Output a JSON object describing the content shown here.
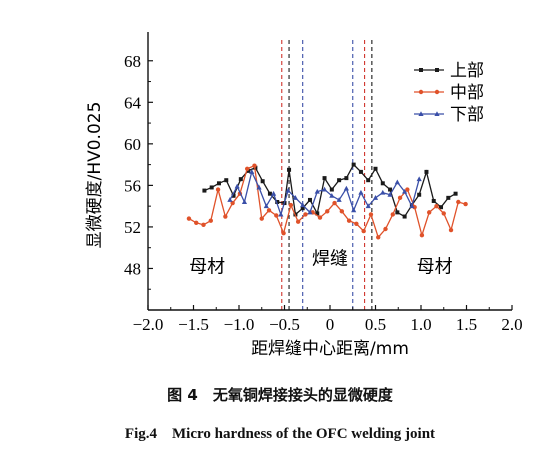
{
  "chart_data": {
    "type": "line",
    "xlabel": "距焊缝中心距离/mm",
    "ylabel": "显微硬度/HV0.025",
    "xlim": [
      -2.0,
      2.0
    ],
    "ylim": [
      44,
      70
    ],
    "x_ticks": [
      -2.0,
      -1.5,
      -1.0,
      -0.5,
      0,
      0.5,
      1.0,
      1.5,
      2.0
    ],
    "x_tick_labels": [
      "−2.0",
      "−1.5",
      "−1.0",
      "−0.5",
      "0",
      "0.5",
      "1.0",
      "1.5",
      "2.0"
    ],
    "y_ticks": [
      48,
      52,
      56,
      60,
      64,
      68
    ],
    "y_tick_labels": [
      "48",
      "52",
      "56",
      "60",
      "64",
      "68"
    ],
    "legend_position": "top-right",
    "series": [
      {
        "name": "上部",
        "color": "#1a1a1a",
        "marker": "square",
        "x": [
          -1.38,
          -1.3,
          -1.22,
          -1.14,
          -1.06,
          -0.98,
          -0.9,
          -0.82,
          -0.74,
          -0.66,
          -0.58,
          -0.5,
          -0.45,
          -0.38,
          -0.3,
          -0.22,
          -0.14,
          -0.06,
          0.02,
          0.1,
          0.18,
          0.26,
          0.34,
          0.42,
          0.5,
          0.58,
          0.66,
          0.74,
          0.82,
          0.9,
          0.98,
          1.06,
          1.14,
          1.22,
          1.3,
          1.38
        ],
        "y": [
          55.5,
          55.8,
          56.2,
          56.5,
          55.0,
          56.6,
          57.4,
          57.7,
          56.4,
          55.2,
          54.4,
          54.3,
          57.5,
          53.2,
          53.8,
          54.6,
          53.3,
          56.7,
          55.6,
          56.5,
          56.7,
          58.0,
          57.3,
          56.5,
          57.6,
          56.2,
          55.6,
          53.4,
          53.0,
          54.1,
          55.1,
          57.3,
          54.5,
          53.9,
          54.8,
          55.2
        ]
      },
      {
        "name": "中部",
        "color": "#e0522a",
        "marker": "circle",
        "x": [
          -1.55,
          -1.47,
          -1.39,
          -1.31,
          -1.23,
          -1.15,
          -1.07,
          -0.99,
          -0.91,
          -0.83,
          -0.75,
          -0.67,
          -0.59,
          -0.51,
          -0.43,
          -0.35,
          -0.27,
          -0.19,
          -0.11,
          -0.03,
          0.05,
          0.13,
          0.21,
          0.29,
          0.37,
          0.45,
          0.53,
          0.61,
          0.69,
          0.77,
          0.85,
          0.93,
          1.01,
          1.09,
          1.17,
          1.25,
          1.33,
          1.41,
          1.49
        ],
        "y": [
          52.8,
          52.4,
          52.2,
          52.6,
          55.6,
          53.0,
          54.3,
          55.2,
          57.6,
          57.9,
          52.8,
          53.6,
          53.1,
          51.4,
          54.1,
          52.5,
          53.2,
          53.4,
          52.9,
          53.5,
          54.3,
          53.5,
          52.6,
          52.3,
          51.6,
          53.2,
          51.0,
          51.8,
          53.2,
          54.8,
          55.6,
          53.9,
          51.2,
          53.4,
          54.0,
          53.3,
          51.7,
          54.4,
          54.2
        ]
      },
      {
        "name": "下部",
        "color": "#3a4fa8",
        "marker": "triangle",
        "x": [
          -1.1,
          -1.02,
          -0.94,
          -0.86,
          -0.78,
          -0.7,
          -0.62,
          -0.54,
          -0.46,
          -0.38,
          -0.3,
          -0.22,
          -0.14,
          -0.06,
          0.02,
          0.1,
          0.18,
          0.26,
          0.34,
          0.42,
          0.5,
          0.58,
          0.66,
          0.74,
          0.82,
          0.9,
          0.98
        ],
        "y": [
          54.6,
          55.9,
          54.4,
          57.3,
          55.8,
          54.0,
          55.2,
          53.2,
          55.5,
          54.8,
          54.1,
          53.4,
          55.4,
          55.6,
          55.0,
          54.6,
          55.7,
          53.6,
          55.3,
          54.0,
          54.8,
          55.3,
          55.1,
          56.3,
          55.4,
          54.0,
          56.6
        ]
      }
    ],
    "vlines": [
      {
        "x": -0.53,
        "color": "#d0342c"
      },
      {
        "x": -0.45,
        "color": "#1a1a1a"
      },
      {
        "x": -0.3,
        "color": "#3a4fa8"
      },
      {
        "x": 0.25,
        "color": "#3a4fa8"
      },
      {
        "x": 0.38,
        "color": "#d0342c"
      },
      {
        "x": 0.46,
        "color": "#1a1a1a"
      }
    ],
    "annotations": [
      {
        "text": "母材",
        "x": -1.35,
        "y": 47.6
      },
      {
        "text": "焊缝",
        "x": 0.0,
        "y": 48.4
      },
      {
        "text": "母材",
        "x": 1.15,
        "y": 47.6
      }
    ]
  },
  "caption": {
    "cn": "图 4　无氧铜焊接接头的显微硬度",
    "en": "Fig.4　Micro hardness of the OFC welding joint"
  }
}
